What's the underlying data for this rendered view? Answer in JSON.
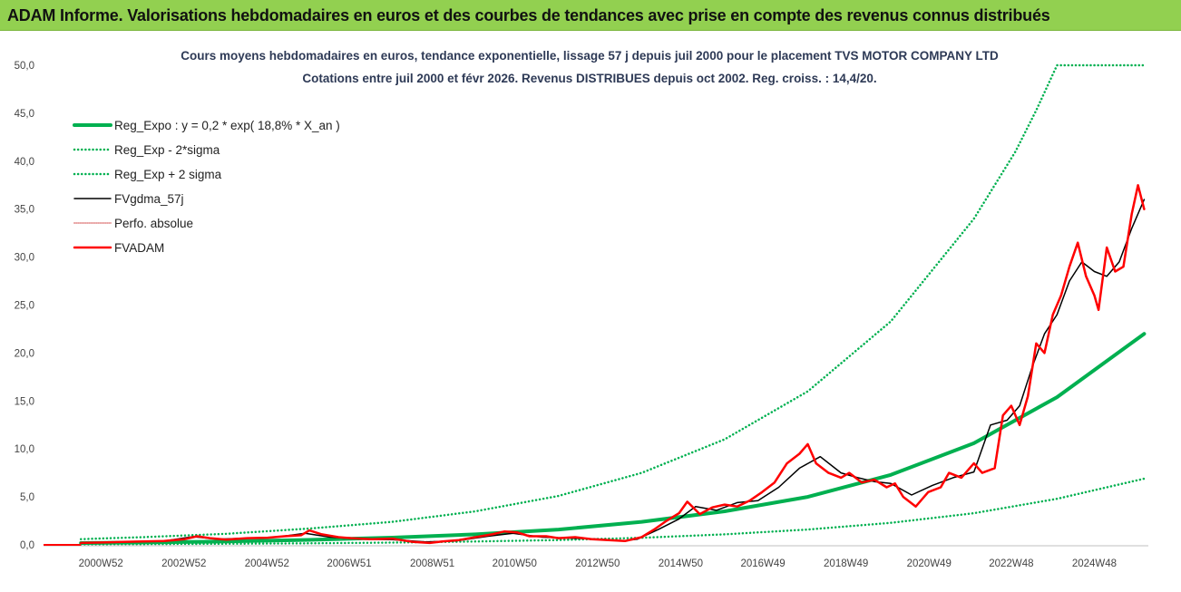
{
  "banner": {
    "text": "ADAM Informe. Valorisations hebdomadaires en euros et des courbes de tendances avec prise en compte des revenus connus distribués",
    "background": "#92d050"
  },
  "chart_data": {
    "type": "line",
    "title": "Cours moyens hebdomadaires en euros, tendance exponentielle, lissage 57 j depuis juil 2000 pour le placement TVS MOTOR COMPANY LTD",
    "subtitle": "Cotations entre juil 2000 et févr 2026.  Revenus DISTRIBUES depuis oct 2002. Reg. croiss. : 14,4/20.",
    "xlabel": "",
    "ylabel": "",
    "ylim": [
      0,
      50
    ],
    "y_ticks": [
      "0,0",
      "5,0",
      "10,0",
      "15,0",
      "20,0",
      "25,0",
      "30,0",
      "35,0",
      "40,0",
      "45,0",
      "50,0"
    ],
    "xlim": [
      1999.6,
      2026.2
    ],
    "x_ticks": [
      {
        "label": "2000W52",
        "x": 2000.98
      },
      {
        "label": "2002W52",
        "x": 2002.98
      },
      {
        "label": "2004W52",
        "x": 2004.98
      },
      {
        "label": "2006W51",
        "x": 2006.96
      },
      {
        "label": "2008W51",
        "x": 2008.96
      },
      {
        "label": "2010W50",
        "x": 2010.94
      },
      {
        "label": "2012W50",
        "x": 2012.94
      },
      {
        "label": "2014W50",
        "x": 2014.94
      },
      {
        "label": "2016W49",
        "x": 2016.92
      },
      {
        "label": "2018W49",
        "x": 2018.92
      },
      {
        "label": "2020W49",
        "x": 2020.92
      },
      {
        "label": "2022W48",
        "x": 2022.9
      },
      {
        "label": "2024W48",
        "x": 2024.9
      }
    ],
    "grid": false,
    "legend_position": "top-left",
    "series": [
      {
        "name": "Reg_Expo : y = 0,2 * exp( 18,8% *  X_an )",
        "color": "#00b050",
        "style": "solid",
        "width": 4,
        "x": [
          2000.5,
          2002,
          2004,
          2006,
          2008,
          2010,
          2012,
          2014,
          2016,
          2018,
          2020,
          2022,
          2024,
          2026.1
        ],
        "y": [
          0.19,
          0.25,
          0.36,
          0.52,
          0.76,
          1.1,
          1.6,
          2.4,
          3.5,
          5.0,
          7.3,
          10.6,
          15.4,
          22.0
        ]
      },
      {
        "name": "Reg_Exp - 2*sigma",
        "color": "#00b050",
        "style": "dotted",
        "width": 2.5,
        "x": [
          2000.5,
          2002,
          2004,
          2006,
          2008,
          2010,
          2012,
          2014,
          2016,
          2018,
          2020,
          2022,
          2024,
          2026.1
        ],
        "y": [
          0.06,
          0.08,
          0.11,
          0.16,
          0.24,
          0.35,
          0.5,
          0.74,
          1.1,
          1.6,
          2.3,
          3.3,
          4.8,
          6.9
        ]
      },
      {
        "name": "Reg_Exp + 2 sigma",
        "color": "#00b050",
        "style": "dotted",
        "width": 2.5,
        "x": [
          2000.5,
          2002,
          2004,
          2006,
          2008,
          2010,
          2012,
          2014,
          2016,
          2018,
          2020,
          2022,
          2023,
          2023.5,
          2024,
          2026.1
        ],
        "y": [
          0.6,
          0.8,
          1.15,
          1.7,
          2.4,
          3.5,
          5.1,
          7.5,
          11.0,
          16.0,
          23.3,
          34.0,
          41.0,
          45.3,
          50.0,
          50.0
        ]
      },
      {
        "name": "FVgdma_57j",
        "color": "#000000",
        "style": "solid",
        "width": 1.5,
        "x": [
          2000.5,
          2001.5,
          2002.5,
          2003.2,
          2003.8,
          2004.5,
          2005.2,
          2005.9,
          2006.5,
          2007.3,
          2008.0,
          2008.8,
          2009.5,
          2010.3,
          2010.9,
          2011.6,
          2012.3,
          2013.0,
          2013.5,
          2013.9,
          2014.4,
          2014.9,
          2015.3,
          2015.8,
          2016.3,
          2016.8,
          2017.3,
          2017.8,
          2018.3,
          2018.8,
          2019.2,
          2019.6,
          2020.0,
          2020.5,
          2021.0,
          2021.5,
          2022.0,
          2022.4,
          2022.8,
          2023.1,
          2023.4,
          2023.7,
          2024.0,
          2024.3,
          2024.6,
          2024.9,
          2025.2,
          2025.5,
          2025.8,
          2026.1
        ],
        "y": [
          0.2,
          0.3,
          0.4,
          0.85,
          0.6,
          0.7,
          0.8,
          1.2,
          0.8,
          0.6,
          0.55,
          0.3,
          0.4,
          0.9,
          1.2,
          0.8,
          0.7,
          0.6,
          0.4,
          0.6,
          1.6,
          2.7,
          4.0,
          3.6,
          4.4,
          4.6,
          6.0,
          8.0,
          9.2,
          7.5,
          7.0,
          6.6,
          6.4,
          5.2,
          6.2,
          7.0,
          7.6,
          12.5,
          13.0,
          14.5,
          18.5,
          22.0,
          24.0,
          27.5,
          29.5,
          28.5,
          28.0,
          29.5,
          33.0,
          36.0
        ]
      },
      {
        "name": "Perfo. absolue",
        "color": "#c00000",
        "style": "dotted",
        "width": 1.2,
        "x": [],
        "y": []
      },
      {
        "name": "FVADAM",
        "color": "#ff0000",
        "style": "solid",
        "width": 2.5,
        "x": [
          2000.5,
          2001.0,
          2001.5,
          2002.0,
          2002.5,
          2003.0,
          2003.3,
          2003.6,
          2004.0,
          2004.5,
          2005.0,
          2005.4,
          2005.8,
          2006.0,
          2006.3,
          2006.7,
          2007.0,
          2007.5,
          2008.0,
          2008.5,
          2008.9,
          2009.2,
          2009.6,
          2010.0,
          2010.4,
          2010.7,
          2011.0,
          2011.3,
          2011.7,
          2012.0,
          2012.4,
          2012.8,
          2013.2,
          2013.6,
          2014.0,
          2014.3,
          2014.6,
          2014.9,
          2015.1,
          2015.4,
          2015.7,
          2016.0,
          2016.3,
          2016.6,
          2016.9,
          2017.2,
          2017.5,
          2017.8,
          2018.0,
          2018.2,
          2018.5,
          2018.8,
          2019.0,
          2019.3,
          2019.6,
          2019.9,
          2020.1,
          2020.3,
          2020.6,
          2020.9,
          2021.2,
          2021.4,
          2021.7,
          2022.0,
          2022.2,
          2022.5,
          2022.7,
          2022.9,
          2023.1,
          2023.3,
          2023.5,
          2023.7,
          2023.9,
          2024.1,
          2024.3,
          2024.5,
          2024.7,
          2024.9,
          2025.0,
          2025.2,
          2025.4,
          2025.6,
          2025.8,
          2025.95,
          2026.1
        ],
        "y": [
          0.2,
          0.25,
          0.3,
          0.35,
          0.4,
          0.6,
          0.9,
          0.7,
          0.55,
          0.7,
          0.75,
          0.9,
          1.0,
          1.5,
          1.1,
          0.8,
          0.7,
          0.6,
          0.65,
          0.3,
          0.2,
          0.35,
          0.5,
          0.8,
          1.1,
          1.4,
          1.3,
          0.9,
          0.9,
          0.7,
          0.8,
          0.6,
          0.5,
          0.4,
          0.8,
          1.6,
          2.5,
          3.3,
          4.5,
          3.2,
          3.9,
          4.2,
          4.0,
          4.6,
          5.5,
          6.5,
          8.5,
          9.5,
          10.5,
          8.5,
          7.5,
          7.0,
          7.5,
          6.5,
          6.8,
          6.0,
          6.4,
          5.0,
          4.0,
          5.5,
          6.0,
          7.5,
          7.0,
          8.5,
          7.5,
          8.0,
          13.5,
          14.5,
          12.5,
          15.5,
          21.0,
          20.0,
          24.0,
          26.0,
          29.0,
          31.5,
          28.0,
          26.0,
          24.5,
          31.0,
          28.5,
          29.0,
          34.5,
          37.5,
          35.0
        ]
      }
    ]
  }
}
